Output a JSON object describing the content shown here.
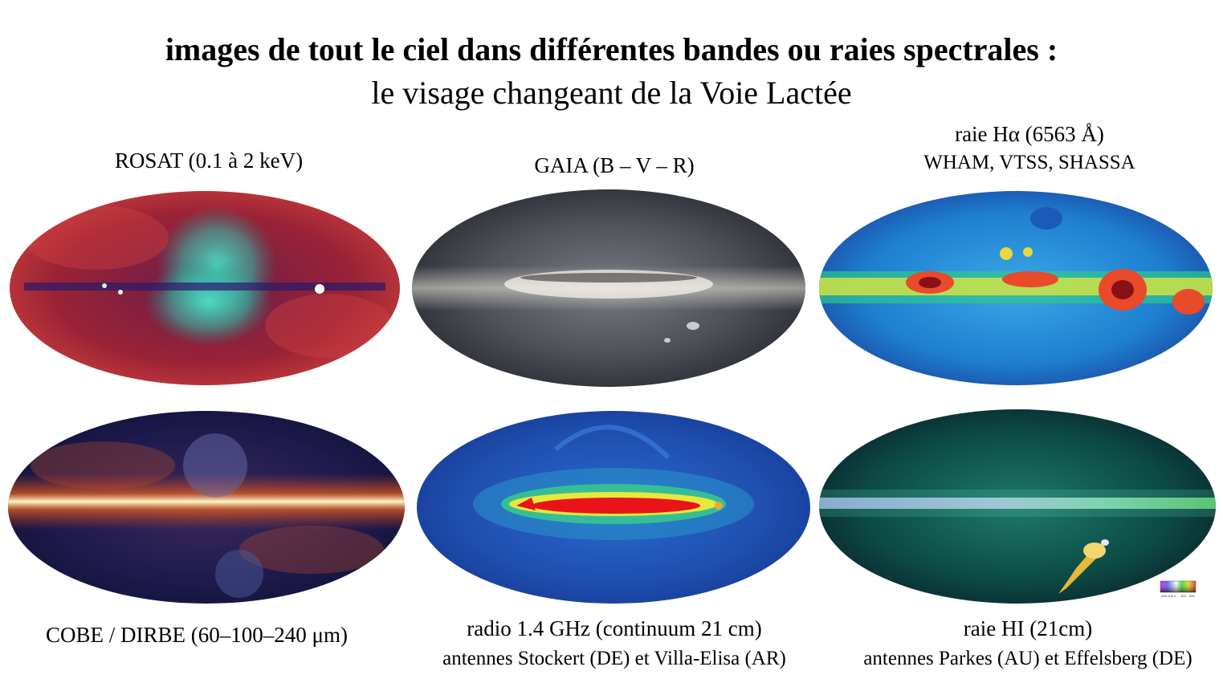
{
  "header": {
    "title": "images de tout le ciel dans différentes bandes ou raies spectrales :",
    "subtitle": "le visage changeant de la Voie Lactée"
  },
  "panels": [
    {
      "caption": "ROSAT (0.1 à 2 keV)",
      "image": "rosat-xray-allsky"
    },
    {
      "caption": "GAIA (B – V – R)",
      "image": "gaia-optical-allsky"
    },
    {
      "caption": "raie Hα (6563 Å)",
      "caption2": "WHAM, VTSS, SHASSA",
      "image": "halpha-allsky"
    },
    {
      "caption": "COBE / DIRBE (60–100–240 μm)",
      "image": "cobe-dirbe-infrared-allsky"
    },
    {
      "caption": "radio 1.4 GHz (continuum 21 cm)",
      "caption2": "antennes Stockert (DE) et Villa-Elisa (AR)",
      "image": "radio-continuum-allsky"
    },
    {
      "caption": "raie HI (21cm)",
      "caption2": "antennes Parkes (AU) et Effelsberg (DE)",
      "image": "hi-21cm-allsky"
    }
  ],
  "colorbar": {
    "ticks": [
      "-300",
      "-100",
      "0",
      "100",
      "300"
    ]
  },
  "colors": {
    "rosat_base": "#a3243a",
    "gaia_base": "#4a4c54",
    "halpha_base": "#1e7fd0",
    "cobe_base": "#1e1a4e",
    "radio_base": "#1f4fb0",
    "hi_base": "#0c4a45"
  }
}
